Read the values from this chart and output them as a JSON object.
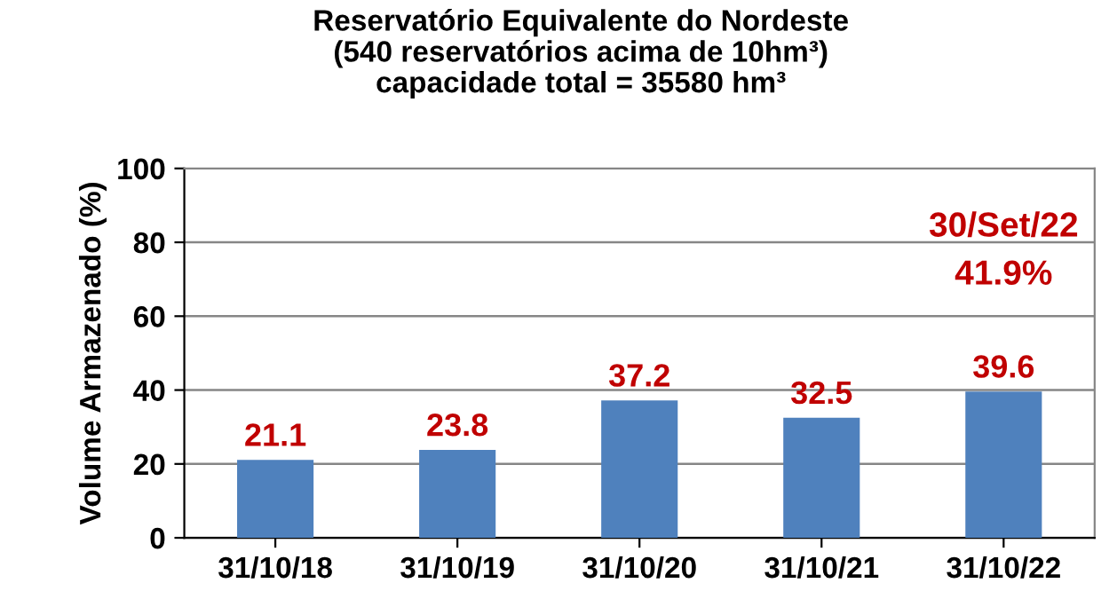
{
  "chart_data": {
    "type": "bar",
    "title": "Reservatório Equivalente do Nordeste\n(540 reservatórios acima de 10hm³)\ncapacidade total = 35580 hm³",
    "ylabel": "Volume Armazenado (%)",
    "categories": [
      "31/10/18",
      "31/10/19",
      "31/10/20",
      "31/10/21",
      "31/10/22"
    ],
    "series": [
      {
        "color": "#4f81bd",
        "values": [
          21.1,
          23.8,
          37.2,
          32.5,
          39.6
        ]
      }
    ],
    "data_labels": true,
    "ylim": [
      0,
      100
    ],
    "yticks": [
      0,
      20,
      40,
      60,
      80,
      100
    ],
    "grid": "y",
    "annotations": [
      "30/Set/22",
      "41.9%"
    ]
  }
}
